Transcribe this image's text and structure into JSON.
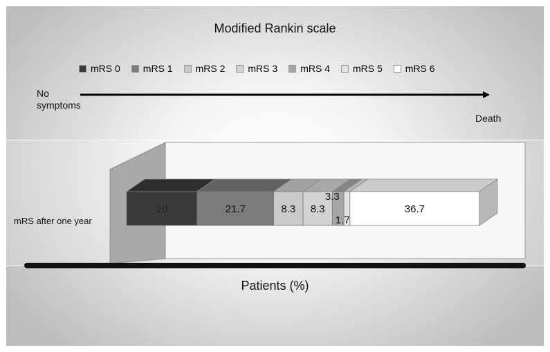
{
  "chart_data": {
    "type": "bar",
    "orientation": "horizontal",
    "stacked": true,
    "three_d": true,
    "title": "Modified Rankin scale",
    "xlabel": "Patients (%)",
    "ylabel": "",
    "categories": [
      "mRS after one year"
    ],
    "series": [
      {
        "name": "mRS 0",
        "values": [
          20
        ],
        "color": "#3a3a3a",
        "label_color": "#222222"
      },
      {
        "name": "mRS 1",
        "values": [
          21.7
        ],
        "color": "#7b7b7b",
        "label_color": "#111111"
      },
      {
        "name": "mRS 2",
        "values": [
          8.3
        ],
        "color": "#cacaca",
        "label_color": "#111111"
      },
      {
        "name": "mRS 3",
        "values": [
          8.3
        ],
        "color": "#d2d2d2",
        "label_color": "#111111"
      },
      {
        "name": "mRS 4",
        "values": [
          3.3
        ],
        "color": "#a6a6a6",
        "label_color": "#111111"
      },
      {
        "name": "mRS 5",
        "values": [
          1.7
        ],
        "color": "#e3e3e3",
        "label_color": "#111111"
      },
      {
        "name": "mRS 6",
        "values": [
          36.7
        ],
        "color": "#ffffff",
        "label_color": "#111111"
      }
    ],
    "xlim": [
      0,
      100
    ],
    "legend_position": "top",
    "grid": false
  },
  "scale": {
    "start_label": "No symptoms",
    "end_label": "Death"
  }
}
